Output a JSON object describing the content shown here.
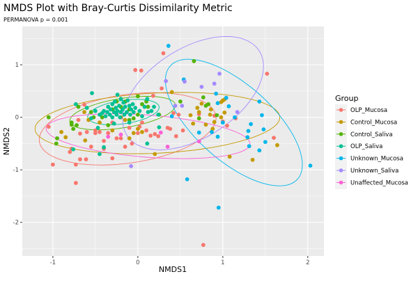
{
  "chart_data": {
    "type": "scatter",
    "title": "NMDS Plot with Bray-Curtis Dissimilarity Metric",
    "subtitle": "PERMANOVA p =  0.001",
    "xlabel": "NMDS1",
    "ylabel": "NMDS2",
    "xlim": [
      -1.36,
      2.19
    ],
    "ylim": [
      -2.64,
      1.73
    ],
    "x_ticks": [
      -1,
      0,
      1,
      2
    ],
    "y_ticks": [
      -2,
      -1,
      0,
      1
    ],
    "x_tick_labels": [
      "-1",
      "0",
      "1",
      "2"
    ],
    "y_tick_labels": [
      "-2",
      "-1",
      "0",
      "1"
    ],
    "grid": true,
    "legend": {
      "title": "Group",
      "placement": "right"
    },
    "series": [
      {
        "name": "OLP_Mucosa",
        "color": "#F8766D",
        "ellipse": {
          "center": [
            -0.12,
            -0.22
          ],
          "a": [
            1.03,
            0.3
          ],
          "b": [
            -0.15,
            0.62
          ]
        },
        "points": [
          [
            0.3,
            1.22
          ],
          [
            -0.03,
            0.9
          ],
          [
            0.04,
            0.89
          ],
          [
            1.52,
            0.83
          ],
          [
            0.28,
            0.55
          ],
          [
            0.18,
            0.41
          ],
          [
            -1.05,
            -0.18
          ],
          [
            -1.0,
            -0.9
          ],
          [
            -0.73,
            -1.25
          ],
          [
            -0.73,
            -0.9
          ],
          [
            -0.8,
            -0.66
          ],
          [
            -0.78,
            -0.6
          ],
          [
            -0.68,
            -0.8
          ],
          [
            -0.61,
            -0.8
          ],
          [
            -0.68,
            -0.31
          ],
          [
            -0.55,
            -0.56
          ],
          [
            -0.6,
            -0.28
          ],
          [
            -0.5,
            -0.3
          ],
          [
            -0.4,
            -0.6
          ],
          [
            -0.4,
            -0.45
          ],
          [
            -0.3,
            -0.78
          ],
          [
            -0.2,
            -0.4
          ],
          [
            -0.15,
            -0.56
          ],
          [
            -0.07,
            -0.5
          ],
          [
            0.0,
            -0.3
          ],
          [
            0.1,
            -0.25
          ],
          [
            0.15,
            -0.35
          ],
          [
            0.2,
            -0.32
          ],
          [
            0.24,
            -0.36
          ],
          [
            0.35,
            -0.2
          ],
          [
            0.38,
            -0.22
          ],
          [
            0.45,
            -0.36
          ],
          [
            0.53,
            -0.25
          ],
          [
            0.42,
            0.08
          ],
          [
            0.48,
            0.05
          ],
          [
            0.72,
            0.06
          ],
          [
            0.9,
            0.03
          ],
          [
            1.0,
            -0.08
          ],
          [
            1.05,
            -0.16
          ],
          [
            1.15,
            -0.02
          ],
          [
            1.6,
            -0.39
          ],
          [
            0.77,
            -2.43
          ],
          [
            -0.3,
            -0.1
          ],
          [
            -0.1,
            -0.2
          ],
          [
            0.05,
            -0.1
          ],
          [
            -0.25,
            -0.4
          ],
          [
            -0.45,
            -0.28
          ],
          [
            -0.7,
            -0.05
          ],
          [
            -0.63,
            0.24
          ],
          [
            -0.35,
            -0.3
          ],
          [
            -0.5,
            -0.25
          ],
          [
            0.02,
            -0.18
          ]
        ]
      },
      {
        "name": "Control_Mucosa",
        "color": "#C49A00",
        "ellipse": {
          "center": [
            0.23,
            -0.11
          ],
          "a": [
            1.44,
            0.13
          ],
          "b": [
            -0.05,
            0.57
          ]
        },
        "points": [
          [
            -0.63,
            0.1
          ],
          [
            -0.58,
            -0.05
          ],
          [
            -0.9,
            -0.28
          ],
          [
            -0.85,
            -0.38
          ],
          [
            -0.62,
            -0.44
          ],
          [
            -0.45,
            -0.1
          ],
          [
            -0.3,
            -0.25
          ],
          [
            -0.1,
            -0.4
          ],
          [
            -0.05,
            -0.3
          ],
          [
            0.05,
            -0.28
          ],
          [
            0.0,
            -0.22
          ],
          [
            0.2,
            -0.7
          ],
          [
            0.4,
            0.48
          ],
          [
            0.62,
            0.04
          ],
          [
            0.65,
            -0.12
          ],
          [
            0.7,
            0.18
          ],
          [
            0.72,
            0.1
          ],
          [
            0.75,
            0.26
          ],
          [
            0.8,
            -0.14
          ],
          [
            0.85,
            0.05
          ],
          [
            0.86,
            0.15
          ],
          [
            0.88,
            -0.22
          ],
          [
            0.9,
            -0.09
          ],
          [
            0.98,
            0.29
          ],
          [
            1.0,
            0.32
          ],
          [
            1.02,
            0.34
          ],
          [
            1.02,
            0.09
          ],
          [
            0.98,
            0.0
          ],
          [
            1.08,
            -0.75
          ],
          [
            1.35,
            -0.81
          ],
          [
            1.64,
            -0.53
          ],
          [
            -0.2,
            0.0
          ],
          [
            -0.15,
            -0.05
          ]
        ]
      },
      {
        "name": "Control_Saliva",
        "color": "#53B400",
        "ellipse": {
          "center": [
            -0.18,
            0.08
          ],
          "a": [
            0.62,
            0.17
          ],
          "b": [
            -0.05,
            0.27
          ]
        },
        "points": [
          [
            -1.05,
            0.0
          ],
          [
            -0.95,
            -0.4
          ],
          [
            -0.96,
            -0.5
          ],
          [
            -0.78,
            -0.1
          ],
          [
            -0.78,
            -0.14
          ],
          [
            -0.76,
            -0.22
          ],
          [
            -0.72,
            -0.15
          ],
          [
            -0.7,
            0.2
          ],
          [
            -0.55,
            0.1
          ],
          [
            -0.52,
            0.0
          ],
          [
            -0.42,
            0.0
          ],
          [
            -0.3,
            0.15
          ],
          [
            -0.25,
            0.3
          ],
          [
            -0.2,
            0.2
          ],
          [
            -0.1,
            0.15
          ],
          [
            0.0,
            0.05
          ],
          [
            0.05,
            0.25
          ],
          [
            0.1,
            0.3
          ],
          [
            0.12,
            0.2
          ],
          [
            0.5,
            0.3
          ],
          [
            0.66,
            1.07
          ],
          [
            0.72,
            -0.02
          ],
          [
            0.77,
            0.38
          ],
          [
            0.8,
            0.22
          ],
          [
            0.83,
            0.25
          ],
          [
            0.93,
            0.04
          ],
          [
            0.25,
            0.05
          ],
          [
            -0.1,
            -0.05
          ],
          [
            -0.35,
            -0.15
          ],
          [
            -0.15,
            0.3
          ],
          [
            0.0,
            0.4
          ],
          [
            -0.05,
            -0.02
          ]
        ]
      },
      {
        "name": "OLP_Saliva",
        "color": "#00C094",
        "ellipse": {
          "center": [
            -0.17,
            0.1
          ],
          "a": [
            0.42,
            0.1
          ],
          "b": [
            -0.02,
            0.22
          ]
        },
        "points": [
          [
            -0.54,
            0.46
          ],
          [
            -0.73,
            0.25
          ],
          [
            -0.6,
            0.18
          ],
          [
            -0.47,
            -0.2
          ],
          [
            -0.4,
            -0.57
          ],
          [
            -0.45,
            -0.7
          ],
          [
            -0.76,
            -0.61
          ],
          [
            0.25,
            -0.19
          ],
          [
            0.11,
            -0.5
          ],
          [
            0.24,
            0.05
          ],
          [
            0.11,
            0.35
          ],
          [
            -0.24,
            0.43
          ],
          [
            -0.45,
            0.05
          ],
          [
            -0.42,
            0.08
          ],
          [
            -0.4,
            0.12
          ],
          [
            -0.38,
            0.02
          ],
          [
            -0.36,
            0.1
          ],
          [
            -0.35,
            0.2
          ],
          [
            -0.33,
            0.05
          ],
          [
            -0.32,
            0.15
          ],
          [
            -0.3,
            0.25
          ],
          [
            -0.3,
            0.0
          ],
          [
            -0.28,
            0.1
          ],
          [
            -0.27,
            0.3
          ],
          [
            -0.26,
            0.18
          ],
          [
            -0.25,
            0.05
          ],
          [
            -0.24,
            0.12
          ],
          [
            -0.22,
            0.22
          ],
          [
            -0.21,
            0.0
          ],
          [
            -0.2,
            0.35
          ],
          [
            -0.2,
            0.1
          ],
          [
            -0.18,
            0.15
          ],
          [
            -0.17,
            0.28
          ],
          [
            -0.16,
            0.05
          ],
          [
            -0.15,
            0.2
          ],
          [
            -0.13,
            0.1
          ],
          [
            -0.12,
            0.32
          ],
          [
            -0.1,
            0.22
          ],
          [
            -0.09,
            0.05
          ],
          [
            -0.08,
            0.15
          ],
          [
            -0.06,
            0.25
          ],
          [
            -0.05,
            0.1
          ],
          [
            -0.03,
            0.18
          ],
          [
            0.02,
            0.12
          ],
          [
            0.05,
            0.02
          ],
          [
            0.08,
            0.2
          ],
          [
            0.12,
            0.1
          ],
          [
            0.16,
            0.12
          ],
          [
            0.19,
            0.2
          ],
          [
            -0.5,
            0.12
          ],
          [
            -0.55,
            -0.02
          ],
          [
            -0.28,
            -0.12
          ],
          [
            -0.1,
            -0.1
          ]
        ]
      },
      {
        "name": "Unknown_Mucosa",
        "color": "#00B6EB",
        "ellipse": {
          "center": [
            1.13,
            -0.1
          ],
          "a": [
            0.4,
            -1.18
          ],
          "b": [
            -0.7,
            0.25
          ]
        },
        "points": [
          [
            0.36,
            1.36
          ],
          [
            0.54,
            0.72
          ],
          [
            0.92,
            0.45
          ],
          [
            0.94,
            0.27
          ],
          [
            1.04,
            0.37
          ],
          [
            1.07,
            0.21
          ],
          [
            1.43,
            0.3
          ],
          [
            1.46,
            0.04
          ],
          [
            1.14,
            0.0
          ],
          [
            1.0,
            -0.1
          ],
          [
            1.33,
            -0.13
          ],
          [
            1.3,
            -0.26
          ],
          [
            1.48,
            -0.23
          ],
          [
            1.29,
            -0.38
          ],
          [
            1.31,
            -0.55
          ],
          [
            1.5,
            -0.47
          ],
          [
            1.43,
            -0.63
          ],
          [
            0.72,
            -0.29
          ],
          [
            0.87,
            -0.28
          ],
          [
            0.94,
            -0.37
          ],
          [
            0.58,
            -1.18
          ],
          [
            0.95,
            -1.72
          ],
          [
            2.03,
            -0.92
          ],
          [
            0.4,
            0.02
          ]
        ]
      },
      {
        "name": "Unknown_Saliva",
        "color": "#A58AFF",
        "ellipse": {
          "center": [
            0.65,
            0.46
          ],
          "a": [
            0.55,
            1.05
          ],
          "b": [
            -0.62,
            0.25
          ]
        },
        "points": [
          [
            0.33,
            0.69
          ],
          [
            0.55,
            0.68
          ],
          [
            0.75,
            0.58
          ],
          [
            0.9,
            0.64
          ],
          [
            0.96,
            0.83
          ],
          [
            0.44,
            0.22
          ],
          [
            0.52,
            0.22
          ],
          [
            1.17,
            0.1
          ],
          [
            -0.08,
            -0.93
          ]
        ]
      },
      {
        "name": "Unaffected_Mucosa",
        "color": "#FB61D7",
        "ellipse": {
          "center": [
            0.12,
            -0.36
          ],
          "a": [
            1.2,
            -0.15
          ],
          "b": [
            0.02,
            0.4
          ]
        },
        "points": [
          [
            -0.35,
            -0.37
          ],
          [
            -0.2,
            -0.33
          ],
          [
            0.27,
            -0.29
          ],
          [
            0.35,
            -0.56
          ],
          [
            0.72,
            -0.46
          ]
        ]
      }
    ]
  }
}
